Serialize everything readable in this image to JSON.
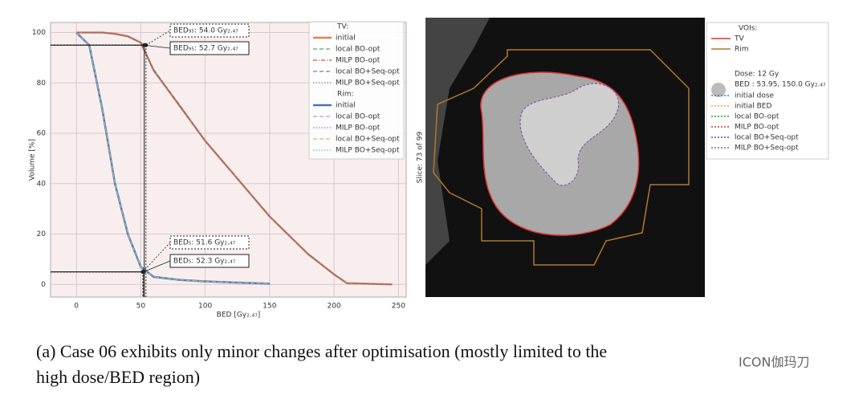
{
  "chart_data": {
    "type": "line",
    "xlabel": "BED [Gy₂.₄₇]",
    "ylabel": "Volume [%]",
    "xlim": [
      -20,
      256
    ],
    "ylim": [
      -5,
      104
    ],
    "xticks": [
      0,
      50,
      100,
      150,
      200,
      250
    ],
    "yticks": [
      0,
      20,
      40,
      60,
      80,
      100
    ],
    "grid": true,
    "x": [
      0,
      10,
      20,
      30,
      40,
      50,
      60,
      80,
      100,
      120,
      150,
      180,
      200,
      210,
      230,
      245
    ],
    "legend_groups": [
      "TV:",
      "Rim:"
    ],
    "series": [
      {
        "name": "initial",
        "group": 0,
        "color": "#dd8452",
        "dash": "solid",
        "values": [
          100,
          100,
          100,
          99.5,
          98.5,
          96,
          85,
          71,
          57,
          45,
          27,
          12,
          4,
          0.5,
          0.2,
          0
        ]
      },
      {
        "name": "local BO-opt",
        "group": 0,
        "color": "#55a868",
        "dash": "dashed",
        "values": [
          100,
          100,
          100,
          99.5,
          98.5,
          96,
          85.5,
          71,
          57,
          45,
          27,
          12,
          4,
          0.5,
          0.2,
          0
        ]
      },
      {
        "name": "MILP BO-opt",
        "group": 0,
        "color": "#c44e52",
        "dash": "dashdot",
        "values": [
          100,
          100,
          100,
          99.5,
          98.5,
          96,
          85,
          71,
          57,
          45,
          27,
          12,
          4,
          0.5,
          0.2,
          0
        ]
      },
      {
        "name": "local BO+Seq-opt",
        "group": 0,
        "color": "#8172b3",
        "dash": "dashed",
        "values": [
          100,
          100,
          100,
          99.5,
          98.5,
          96,
          85,
          71.5,
          57,
          45,
          27,
          12,
          4,
          0.5,
          0.2,
          0
        ]
      },
      {
        "name": "MILP BO+Seq-opt",
        "group": 0,
        "color": "#937860",
        "dash": "dotted",
        "values": [
          100,
          100,
          100,
          99.5,
          98.5,
          96,
          85,
          71,
          57,
          45,
          27,
          12,
          4,
          0.5,
          0.2,
          0
        ]
      },
      {
        "name": "initial",
        "group": 1,
        "color": "#4c72b0",
        "dash": "solid",
        "values": [
          100,
          95,
          70,
          40,
          20,
          7,
          3,
          1.8,
          1.2,
          0.8,
          0.3,
          null,
          null,
          null,
          null,
          null
        ]
      },
      {
        "name": "local BO-opt",
        "group": 1,
        "color": "#da8bc3",
        "dash": "dashed",
        "values": [
          100,
          95,
          70,
          40,
          20,
          7,
          3,
          1.8,
          1.2,
          0.8,
          0.3,
          null,
          null,
          null,
          null,
          null
        ]
      },
      {
        "name": "MILP BO-opt",
        "group": 1,
        "color": "#8c8c8c",
        "dash": "dotted",
        "values": [
          100,
          95,
          70,
          40,
          20,
          7,
          3,
          1.8,
          1.2,
          0.8,
          0.3,
          null,
          null,
          null,
          null,
          null
        ]
      },
      {
        "name": "local BO+Seq-opt",
        "group": 1,
        "color": "#ccb974",
        "dash": "dashed",
        "values": [
          100,
          95,
          70,
          40,
          20,
          7,
          3,
          1.8,
          1.2,
          0.8,
          0.3,
          null,
          null,
          null,
          null,
          null
        ]
      },
      {
        "name": "MILP BO+Seq-opt",
        "group": 1,
        "color": "#64b5cd",
        "dash": "dotted",
        "values": [
          100,
          95,
          70,
          40,
          20,
          7,
          3,
          1.8,
          1.2,
          0.8,
          0.3,
          null,
          null,
          null,
          null,
          null
        ]
      }
    ],
    "markers": [
      {
        "x": 54.0,
        "y": 95,
        "label": "BED₉₅:  54.0 Gy₂.₄₇",
        "style": "dotted"
      },
      {
        "x": 52.7,
        "y": 95,
        "label": "BED₉₅:  52.7 Gy₂.₄₇",
        "style": "solid"
      },
      {
        "x": 51.6,
        "y": 5,
        "label": "BED₅:  51.6 Gy₂.₄₇",
        "style": "dotted"
      },
      {
        "x": 52.3,
        "y": 5,
        "label": "BED₅:  52.3 Gy₂.₄₇",
        "style": "solid"
      }
    ]
  },
  "image_panel": {
    "slice_label": "Slice: 73 of 99",
    "legend": {
      "voi_title": "VOIs:",
      "vois": [
        {
          "name": "TV",
          "color": "#e03030"
        },
        {
          "name": "Rim",
          "color": "#b07830"
        }
      ],
      "dose_title": "Dose: 12 Gy",
      "bed_title": "BED : 53.95, 150.0 Gy₂.₄₇",
      "entries": [
        {
          "name": "initial dose",
          "color": "#4c72b0"
        },
        {
          "name": "initial BED",
          "color": "#ff9933"
        },
        {
          "name": "local BO-opt",
          "color": "#2ca02c"
        },
        {
          "name": "MILP BO-opt",
          "color": "#e03030"
        },
        {
          "name": "local BO+Seq-opt",
          "color": "#5050c0"
        },
        {
          "name": "MILP BO+Seq-opt",
          "color": "#8060a0"
        }
      ]
    }
  },
  "caption": {
    "line1": "(a) Case 06 exhibits only minor changes after optimisation (mostly limited to the",
    "line2": "high dose/BED region)"
  },
  "watermark": "ICON伽玛刀"
}
